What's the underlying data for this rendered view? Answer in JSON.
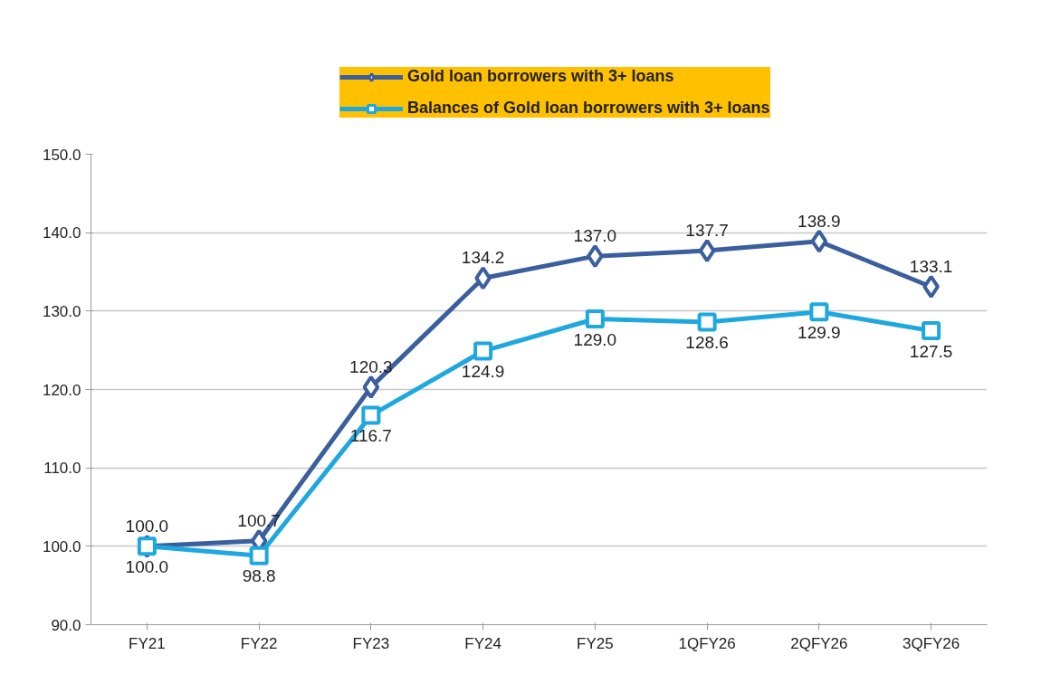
{
  "chart_data": {
    "type": "line",
    "categories": [
      "FY21",
      "FY22",
      "FY23",
      "FY24",
      "FY25",
      "1QFY26",
      "2QFY26",
      "3QFY26"
    ],
    "series": [
      {
        "name": "Gold loan borrowers with 3+ loans",
        "color": "#3b5f9e",
        "marker": "diamond",
        "values": [
          100.0,
          100.7,
          120.3,
          134.2,
          137.0,
          137.7,
          138.9,
          133.1
        ],
        "value_labels": [
          "100.0",
          "100.7",
          "120.3",
          "134.2",
          "137.0",
          "137.7",
          "138.9",
          "133.1"
        ]
      },
      {
        "name": "Balances of Gold loan borrowers with 3+ loans",
        "color": "#1ea8df",
        "marker": "square",
        "values": [
          100.0,
          98.8,
          116.7,
          124.9,
          129.0,
          128.6,
          129.9,
          127.5
        ],
        "value_labels": [
          "100.0",
          "98.8",
          "116.7",
          "124.9",
          "129.0",
          "128.6",
          "129.9",
          "127.5"
        ]
      }
    ],
    "ylim": [
      90,
      150
    ],
    "yticks": [
      {
        "value": 90,
        "label": "90.0"
      },
      {
        "value": 100,
        "label": "100.0"
      },
      {
        "value": 110,
        "label": "110.0"
      },
      {
        "value": 120,
        "label": "120.0"
      },
      {
        "value": 130,
        "label": "130.0"
      },
      {
        "value": 140,
        "label": "140.0"
      },
      {
        "value": 150,
        "label": "150.0"
      }
    ],
    "grid": "y",
    "legend": "top",
    "line_style": "solid"
  }
}
